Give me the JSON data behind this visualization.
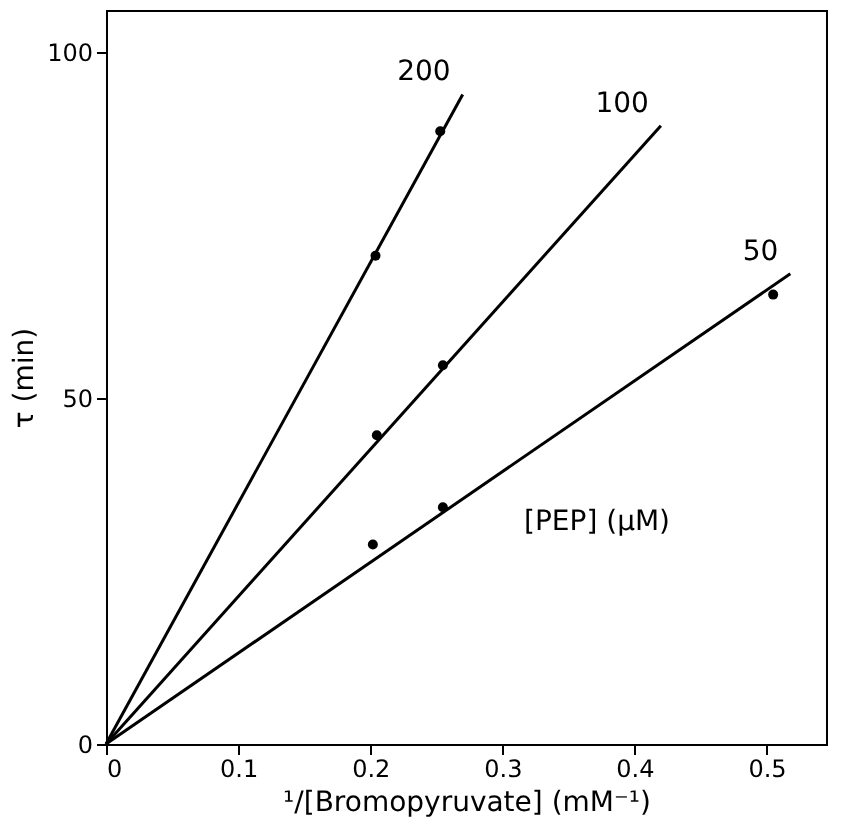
{
  "chart_data": {
    "type": "scatter",
    "xlabel": "¹/[Bromopyruvate] (mM⁻¹)",
    "ylabel": "τ (min)",
    "xlim": [
      0,
      0.545
    ],
    "ylim": [
      0,
      106
    ],
    "xticks": [
      0,
      0.1,
      0.2,
      0.3,
      0.4,
      0.5
    ],
    "yticks": [
      0,
      50,
      100
    ],
    "grid": false,
    "marker": "circle",
    "annotations": [
      "[PEP] (μM)"
    ],
    "series": [
      {
        "color": "#000000",
        "x": [
          0.204,
          0.253
        ],
        "values": [
          70.5,
          88.5
        ]
      },
      {
        "color": "#000000",
        "x": [
          0.205,
          0.255
        ],
        "values": [
          44.6,
          54.7
        ]
      },
      {
        "color": "#000000",
        "x": [
          0.202,
          0.255,
          0.505
        ],
        "values": [
          28.8,
          34.2,
          64.9
        ]
      },
      {
        "type": "line",
        "name": "200",
        "color": "#000000",
        "marker": "none",
        "line_style": "solid",
        "x": [
          0,
          0.27
        ],
        "values": [
          0,
          93.8
        ]
      },
      {
        "type": "line",
        "name": "100",
        "color": "#000000",
        "marker": "none",
        "line_style": "solid",
        "x": [
          0,
          0.42
        ],
        "values": [
          0,
          89.3
        ]
      },
      {
        "type": "line",
        "name": "50",
        "color": "#000000",
        "marker": "none",
        "line_style": "solid",
        "x": [
          0,
          0.518
        ],
        "values": [
          0,
          67.9
        ]
      }
    ]
  }
}
